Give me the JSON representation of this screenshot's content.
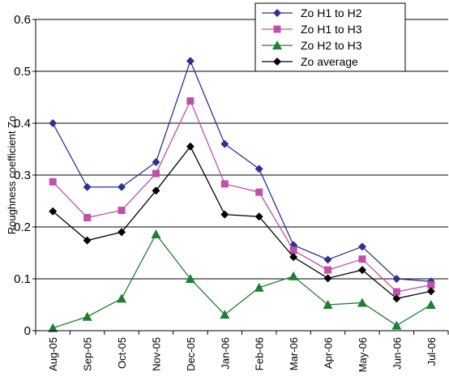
{
  "chart_data": {
    "type": "line",
    "title": "",
    "xlabel": "",
    "ylabel": "Roughness coefficient Zo",
    "ylim": [
      0,
      0.6
    ],
    "yticks": [
      "0",
      "0.1",
      "0.2",
      "0.3",
      "0.4",
      "0.5",
      "0.6"
    ],
    "grid": "horizontal",
    "legend_position": "top-right",
    "categories": [
      "Aug-05",
      "Sep-05",
      "Oct-05",
      "Nov-05",
      "Dec-05",
      "Jan-06",
      "Feb-06",
      "Mar-06",
      "Apr-06",
      "May-06",
      "Jun-06",
      "Jul-06"
    ],
    "series": [
      {
        "name": "Zo  H1 to H2",
        "color": "#2e3192",
        "marker": "diamond",
        "values": [
          0.4,
          0.277,
          0.277,
          0.325,
          0.52,
          0.36,
          0.312,
          0.165,
          0.137,
          0.162,
          0.1,
          0.095
        ]
      },
      {
        "name": "Zo  H1 to H3",
        "color": "#c050a8",
        "marker": "square",
        "values": [
          0.287,
          0.218,
          0.232,
          0.303,
          0.443,
          0.283,
          0.267,
          0.155,
          0.117,
          0.138,
          0.075,
          0.088
        ]
      },
      {
        "name": "Zo  H2 to H3",
        "color": "#1e7e34",
        "marker": "triangle",
        "values": [
          0.005,
          0.027,
          0.062,
          0.186,
          0.1,
          0.031,
          0.083,
          0.105,
          0.05,
          0.054,
          0.01,
          0.05
        ]
      },
      {
        "name": "Zo average",
        "color": "#000000",
        "marker": "diamond",
        "values": [
          0.23,
          0.174,
          0.19,
          0.27,
          0.355,
          0.224,
          0.22,
          0.142,
          0.101,
          0.117,
          0.062,
          0.076
        ]
      }
    ]
  }
}
